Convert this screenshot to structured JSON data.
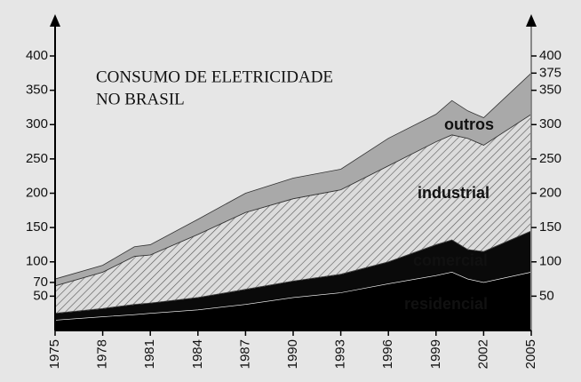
{
  "chart_data": {
    "type": "stacked_area",
    "title": [
      "CONSUMO DE ELETRICIDADE",
      "NO BRASIL"
    ],
    "x": [
      1975,
      1978,
      1980,
      1981,
      1984,
      1987,
      1990,
      1993,
      1996,
      1999,
      2000,
      2001,
      2002,
      2005
    ],
    "series": [
      {
        "name": "residencial",
        "color": "#000000",
        "values": [
          15,
          20,
          23,
          25,
          30,
          38,
          48,
          55,
          68,
          80,
          85,
          75,
          70,
          85
        ]
      },
      {
        "name": "comercial",
        "color": "#0a0a0a",
        "values": [
          10,
          12,
          15,
          15,
          18,
          22,
          24,
          27,
          32,
          45,
          47,
          43,
          45,
          60
        ]
      },
      {
        "name": "industrial",
        "color": "hatch",
        "values": [
          40,
          53,
          70,
          70,
          92,
          112,
          120,
          123,
          140,
          150,
          153,
          162,
          155,
          170
        ]
      },
      {
        "name": "outros",
        "color": "#a9a9a9",
        "values": [
          10,
          10,
          14,
          15,
          22,
          28,
          30,
          30,
          40,
          40,
          50,
          40,
          40,
          60
        ]
      }
    ],
    "xlim": [
      1975,
      2005
    ],
    "xticks": [
      1975,
      1978,
      1981,
      1984,
      1987,
      1990,
      1993,
      1996,
      1999,
      2002,
      2005
    ],
    "ylim": [
      0,
      400
    ],
    "yticks": [
      50,
      70,
      100,
      150,
      200,
      250,
      300,
      350,
      400
    ],
    "y2lim": [
      0,
      400
    ],
    "y2ticks": [
      50,
      100,
      150,
      200,
      250,
      300,
      350,
      375,
      400
    ]
  }
}
